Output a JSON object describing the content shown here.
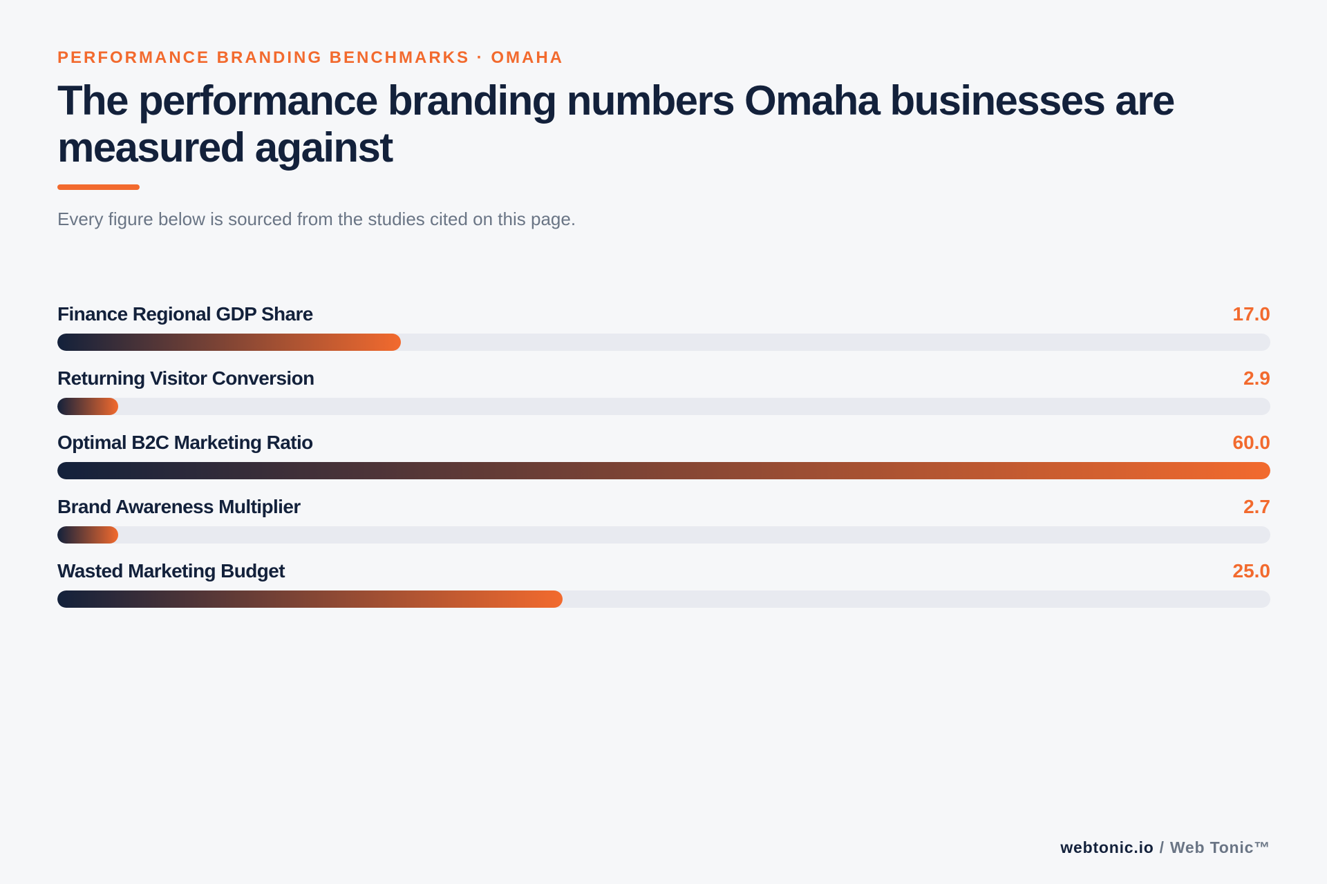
{
  "header": {
    "eyebrow": "PERFORMANCE BRANDING BENCHMARKS · OMAHA",
    "title": "The performance branding numbers Omaha businesses are measured against",
    "subtitle": "Every figure below is sourced from the studies cited on this page."
  },
  "colors": {
    "accent": "#f26a2e",
    "navy": "#13213b",
    "track": "#e8eaf0",
    "background": "#f6f7f9"
  },
  "chart_data": {
    "type": "bar",
    "orientation": "horizontal",
    "categories": [
      "Finance Regional GDP Share",
      "Returning Visitor Conversion",
      "Optimal B2C Marketing Ratio",
      "Brand Awareness Multiplier",
      "Wasted Marketing Budget"
    ],
    "values": [
      17.0,
      2.9,
      60.0,
      2.7,
      25.0
    ],
    "value_labels": [
      "17.0",
      "2.9",
      "60.0",
      "2.7",
      "25.0"
    ],
    "xlim": [
      0,
      60
    ],
    "grid": false
  },
  "footer": {
    "domain": "webtonic.io",
    "separator": "/",
    "brand": "Web Tonic™"
  }
}
